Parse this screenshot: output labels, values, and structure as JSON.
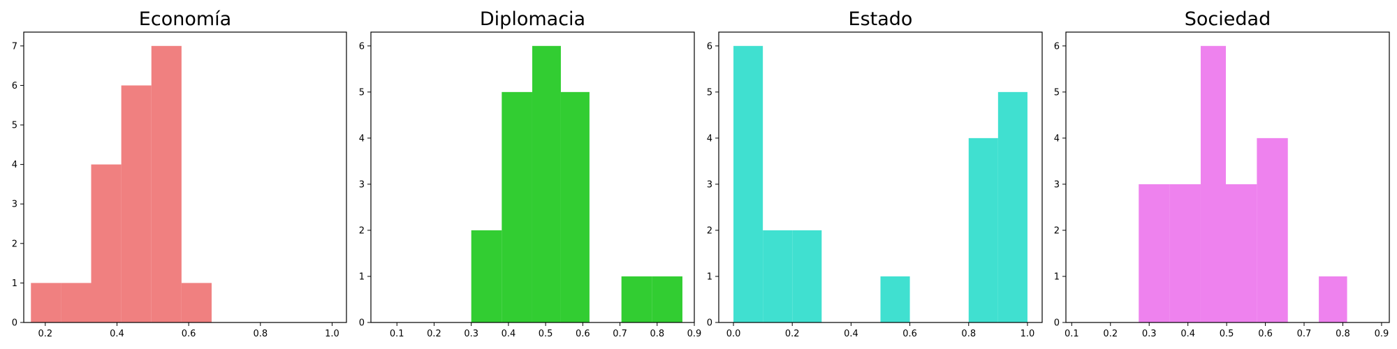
{
  "chart_data": [
    {
      "type": "histogram",
      "title": "Economía",
      "color": "#f08080",
      "bins": [
        {
          "x0": 0.16,
          "x1": 0.244,
          "count": 1
        },
        {
          "x0": 0.244,
          "x1": 0.328,
          "count": 1
        },
        {
          "x0": 0.328,
          "x1": 0.412,
          "count": 4
        },
        {
          "x0": 0.412,
          "x1": 0.496,
          "count": 6
        },
        {
          "x0": 0.496,
          "x1": 0.58,
          "count": 7
        },
        {
          "x0": 0.58,
          "x1": 0.664,
          "count": 1
        }
      ],
      "xlim": [
        0.14,
        1.04
      ],
      "ylim": [
        0,
        7.35
      ],
      "xticks": [
        0.2,
        0.4,
        0.6,
        0.8,
        1.0
      ],
      "xtick_labels": [
        "0.2",
        "0.4",
        "0.6",
        "0.8",
        "1.0"
      ],
      "yticks": [
        0,
        1,
        2,
        3,
        4,
        5,
        6,
        7
      ],
      "ytick_labels": [
        "0",
        "1",
        "2",
        "3",
        "4",
        "5",
        "6",
        "7"
      ],
      "xlabel": "",
      "ylabel": "",
      "grid": false
    },
    {
      "type": "histogram",
      "title": "Diplomacia",
      "color": "#32cd32",
      "bins": [
        {
          "x0": 0.3,
          "x1": 0.382,
          "count": 2
        },
        {
          "x0": 0.382,
          "x1": 0.464,
          "count": 5
        },
        {
          "x0": 0.464,
          "x1": 0.541,
          "count": 6
        },
        {
          "x0": 0.541,
          "x1": 0.618,
          "count": 5
        },
        {
          "x0": 0.618,
          "x1": 0.704,
          "count": 0
        },
        {
          "x0": 0.704,
          "x1": 0.786,
          "count": 1
        },
        {
          "x0": 0.786,
          "x1": 0.868,
          "count": 1
        }
      ],
      "xlim": [
        0.03,
        0.9
      ],
      "ylim": [
        0,
        6.3
      ],
      "xticks": [
        0.1,
        0.2,
        0.3,
        0.4,
        0.5,
        0.6,
        0.7,
        0.8,
        0.9
      ],
      "xtick_labels": [
        "0.1",
        "0.2",
        "0.3",
        "0.4",
        "0.5",
        "0.6",
        "0.7",
        "0.8",
        "0.9"
      ],
      "yticks": [
        0,
        1,
        2,
        3,
        4,
        5,
        6
      ],
      "ytick_labels": [
        "0",
        "1",
        "2",
        "3",
        "4",
        "5",
        "6"
      ],
      "xlabel": "",
      "ylabel": "",
      "grid": false
    },
    {
      "type": "histogram",
      "title": "Estado",
      "color": "#40e0d0",
      "bins": [
        {
          "x0": 0.0,
          "x1": 0.1,
          "count": 6
        },
        {
          "x0": 0.1,
          "x1": 0.2,
          "count": 2
        },
        {
          "x0": 0.2,
          "x1": 0.3,
          "count": 2
        },
        {
          "x0": 0.3,
          "x1": 0.4,
          "count": 0
        },
        {
          "x0": 0.4,
          "x1": 0.5,
          "count": 0
        },
        {
          "x0": 0.5,
          "x1": 0.6,
          "count": 1
        },
        {
          "x0": 0.6,
          "x1": 0.7,
          "count": 0
        },
        {
          "x0": 0.7,
          "x1": 0.8,
          "count": 0
        },
        {
          "x0": 0.8,
          "x1": 0.9,
          "count": 4
        },
        {
          "x0": 0.9,
          "x1": 1.0,
          "count": 5
        }
      ],
      "xlim": [
        -0.05,
        1.05
      ],
      "ylim": [
        0,
        6.3
      ],
      "xticks": [
        0.0,
        0.2,
        0.4,
        0.6,
        0.8,
        1.0
      ],
      "xtick_labels": [
        "0.0",
        "0.2",
        "0.4",
        "0.6",
        "0.8",
        "1.0"
      ],
      "yticks": [
        0,
        1,
        2,
        3,
        4,
        5,
        6
      ],
      "ytick_labels": [
        "0",
        "1",
        "2",
        "3",
        "4",
        "5",
        "6"
      ],
      "xlabel": "",
      "ylabel": "",
      "grid": false
    },
    {
      "type": "histogram",
      "title": "Sociedad",
      "color": "#ee82ee",
      "bins": [
        {
          "x0": 0.273,
          "x1": 0.353,
          "count": 3
        },
        {
          "x0": 0.353,
          "x1": 0.433,
          "count": 3
        },
        {
          "x0": 0.433,
          "x1": 0.498,
          "count": 6
        },
        {
          "x0": 0.498,
          "x1": 0.578,
          "count": 3
        },
        {
          "x0": 0.578,
          "x1": 0.658,
          "count": 4
        },
        {
          "x0": 0.658,
          "x1": 0.738,
          "count": 0
        },
        {
          "x0": 0.738,
          "x1": 0.811,
          "count": 1
        }
      ],
      "xlim": [
        0.085,
        0.92
      ],
      "ylim": [
        0,
        6.3
      ],
      "xticks": [
        0.1,
        0.2,
        0.3,
        0.4,
        0.5,
        0.6,
        0.7,
        0.8,
        0.9
      ],
      "xtick_labels": [
        "0.1",
        "0.2",
        "0.3",
        "0.4",
        "0.5",
        "0.6",
        "0.7",
        "0.8",
        "0.9"
      ],
      "yticks": [
        0,
        1,
        2,
        3,
        4,
        5,
        6
      ],
      "ytick_labels": [
        "0",
        "1",
        "2",
        "3",
        "4",
        "5",
        "6"
      ],
      "xlabel": "",
      "ylabel": "",
      "grid": false
    }
  ]
}
